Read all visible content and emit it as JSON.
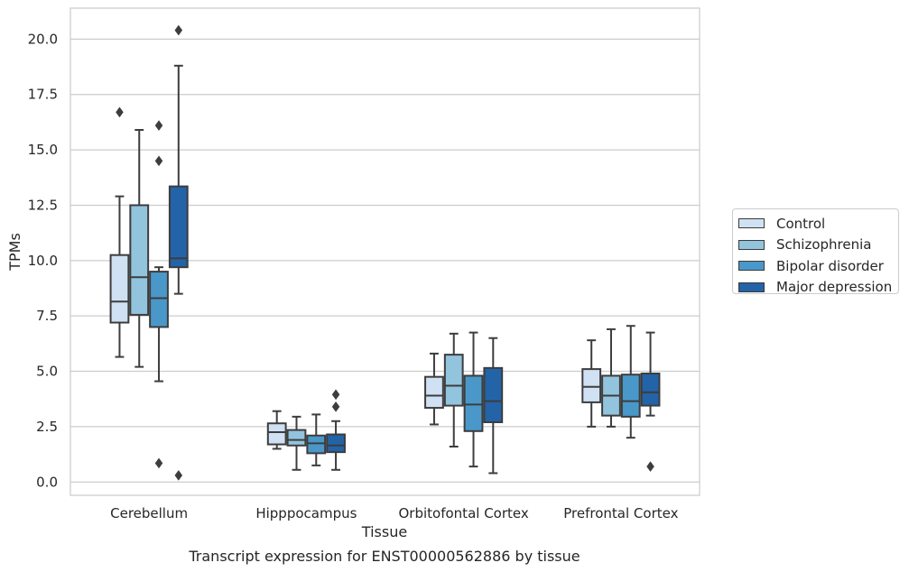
{
  "chart_data": {
    "type": "box",
    "title": "Transcript expression for ENST00000562886 by tissue",
    "xlabel": "Tissue",
    "ylabel": "TPMs",
    "ylim": [
      -0.6,
      21.4
    ],
    "yticks": [
      0.0,
      2.5,
      5.0,
      7.5,
      10.0,
      12.5,
      15.0,
      17.5,
      20.0
    ],
    "ytick_labels": [
      "0.0",
      "2.5",
      "5.0",
      "7.5",
      "10.0",
      "12.5",
      "15.0",
      "17.5",
      "20.0"
    ],
    "categories": [
      "Cerebellum",
      "Hipppocampus",
      "Orbitofontal Cortex",
      "Prefrontal Cortex"
    ],
    "grid": "horizontal",
    "legend_placement": "right",
    "series": [
      {
        "name": "Control",
        "color": "#cfe1f2",
        "boxes": [
          {
            "whislo": 5.65,
            "q1": 7.2,
            "med": 8.15,
            "q3": 10.25,
            "whishi": 12.9,
            "fliers": [
              16.7
            ]
          },
          {
            "whislo": 1.5,
            "q1": 1.7,
            "med": 2.25,
            "q3": 2.65,
            "whishi": 3.2,
            "fliers": []
          },
          {
            "whislo": 2.6,
            "q1": 3.35,
            "med": 3.9,
            "q3": 4.75,
            "whishi": 5.8,
            "fliers": []
          },
          {
            "whislo": 2.5,
            "q1": 3.6,
            "med": 4.3,
            "q3": 5.1,
            "whishi": 6.4,
            "fliers": []
          }
        ]
      },
      {
        "name": "Schizophrenia",
        "color": "#93c4de",
        "boxes": [
          {
            "whislo": 5.2,
            "q1": 7.55,
            "med": 9.25,
            "q3": 12.5,
            "whishi": 15.9,
            "fliers": []
          },
          {
            "whislo": 0.55,
            "q1": 1.65,
            "med": 1.9,
            "q3": 2.35,
            "whishi": 2.95,
            "fliers": []
          },
          {
            "whislo": 1.6,
            "q1": 3.45,
            "med": 4.35,
            "q3": 5.75,
            "whishi": 6.7,
            "fliers": []
          },
          {
            "whislo": 2.5,
            "q1": 3.0,
            "med": 3.9,
            "q3": 4.8,
            "whishi": 6.9,
            "fliers": []
          }
        ]
      },
      {
        "name": "Bipolar disorder",
        "color": "#4a98c9",
        "boxes": [
          {
            "whislo": 4.55,
            "q1": 7.0,
            "med": 8.3,
            "q3": 9.5,
            "whishi": 9.7,
            "fliers": [
              16.1,
              14.5,
              0.85
            ]
          },
          {
            "whislo": 0.75,
            "q1": 1.3,
            "med": 1.75,
            "q3": 2.1,
            "whishi": 3.05,
            "fliers": []
          },
          {
            "whislo": 0.7,
            "q1": 2.3,
            "med": 3.5,
            "q3": 4.8,
            "whishi": 6.75,
            "fliers": []
          },
          {
            "whislo": 2.0,
            "q1": 2.95,
            "med": 3.65,
            "q3": 4.85,
            "whishi": 7.05,
            "fliers": []
          }
        ]
      },
      {
        "name": "Major depression",
        "color": "#2363a8",
        "boxes": [
          {
            "whislo": 8.5,
            "q1": 9.7,
            "med": 10.1,
            "q3": 13.35,
            "whishi": 18.8,
            "fliers": [
              20.4,
              0.3
            ]
          },
          {
            "whislo": 0.55,
            "q1": 1.35,
            "med": 1.65,
            "q3": 2.15,
            "whishi": 2.75,
            "fliers": [
              3.95,
              3.4
            ]
          },
          {
            "whislo": 0.4,
            "q1": 2.7,
            "med": 3.65,
            "q3": 5.15,
            "whishi": 6.5,
            "fliers": []
          },
          {
            "whislo": 3.0,
            "q1": 3.45,
            "med": 4.05,
            "q3": 4.9,
            "whishi": 6.75,
            "fliers": [
              0.7
            ]
          }
        ]
      }
    ]
  }
}
